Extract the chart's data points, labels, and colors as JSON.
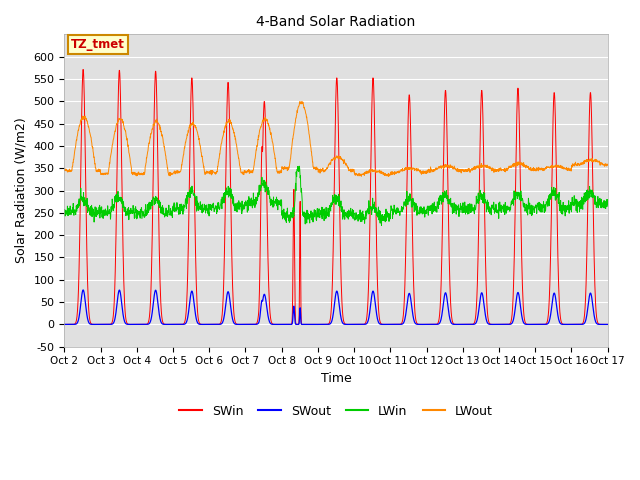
{
  "title": "4-Band Solar Radiation",
  "xlabel": "Time",
  "ylabel": "Solar Radiation (W/m2)",
  "ylim": [
    -50,
    650
  ],
  "xtick_labels": [
    "Oct 2",
    "Oct 3",
    "Oct 4",
    "Oct 5",
    "Oct 6",
    "Oct 7",
    "Oct 8",
    "Oct 9",
    "Oct 10",
    "Oct 11",
    "Oct 12",
    "Oct 13",
    "Oct 14",
    "Oct 15",
    "Oct 16",
    "Oct 17"
  ],
  "annotation_text": "TZ_tmet",
  "annotation_color": "#cc0000",
  "annotation_bg": "#ffffcc",
  "annotation_border": "#cc8800",
  "colors": {
    "SWin": "#ff0000",
    "SWout": "#0000ff",
    "LWin": "#00cc00",
    "LWout": "#ff8800"
  },
  "figsize": [
    6.4,
    4.8
  ],
  "dpi": 100
}
